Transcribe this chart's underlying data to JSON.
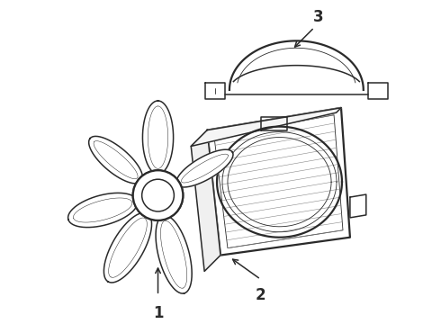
{
  "background_color": "#ffffff",
  "line_color": "#2a2a2a",
  "line_color_light": "#888888",
  "label_1": "1",
  "label_2": "2",
  "label_3": "3",
  "figsize": [
    4.9,
    3.6
  ],
  "dpi": 100
}
